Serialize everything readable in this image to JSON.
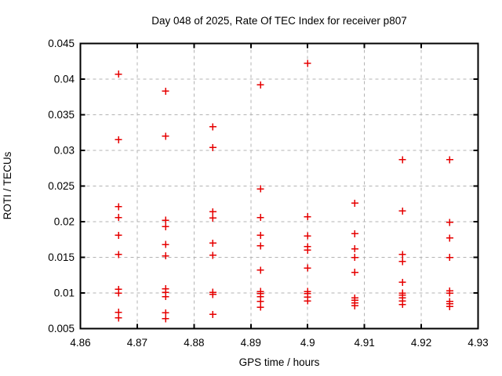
{
  "chart_data": {
    "type": "scatter",
    "title": "Day 048 of 2025, Rate Of TEC Index for receiver p807",
    "xlabel": "GPS time / hours",
    "ylabel": "ROTI / TECUs",
    "xlim": [
      4.86,
      4.93
    ],
    "ylim": [
      0.005,
      0.045
    ],
    "grid": true,
    "legend": "none",
    "marker": "plus",
    "marker_color": "#e60000",
    "grid_color": "#b3b3b3",
    "border_color": "#000000",
    "xticks": {
      "values": [
        4.86,
        4.87,
        4.88,
        4.89,
        4.9,
        4.91,
        4.92,
        4.93
      ],
      "labels": [
        "4.86",
        "4.87",
        "4.88",
        "4.89",
        "4.9",
        "4.91",
        "4.92",
        "4.93"
      ]
    },
    "yticks": {
      "values": [
        0.005,
        0.01,
        0.015,
        0.02,
        0.025,
        0.03,
        0.035,
        0.04,
        0.045
      ],
      "labels": [
        "0.005",
        "0.01",
        "0.015",
        "0.02",
        "0.025",
        "0.03",
        "0.035",
        "0.04",
        "0.045"
      ]
    },
    "series": [
      {
        "name": "ROTI",
        "points": [
          [
            4.8667,
            0.0407
          ],
          [
            4.8667,
            0.0315
          ],
          [
            4.8667,
            0.0221
          ],
          [
            4.8667,
            0.0206
          ],
          [
            4.8667,
            0.0181
          ],
          [
            4.8667,
            0.0154
          ],
          [
            4.8667,
            0.0105
          ],
          [
            4.8667,
            0.01
          ],
          [
            4.8667,
            0.0073
          ],
          [
            4.8667,
            0.0065
          ],
          [
            4.875,
            0.0383
          ],
          [
            4.875,
            0.032
          ],
          [
            4.875,
            0.0202
          ],
          [
            4.875,
            0.0193
          ],
          [
            4.875,
            0.0168
          ],
          [
            4.875,
            0.0152
          ],
          [
            4.875,
            0.0106
          ],
          [
            4.875,
            0.0101
          ],
          [
            4.875,
            0.0095
          ],
          [
            4.875,
            0.0072
          ],
          [
            4.875,
            0.0064
          ],
          [
            4.8833,
            0.0333
          ],
          [
            4.8833,
            0.0304
          ],
          [
            4.8833,
            0.0214
          ],
          [
            4.8833,
            0.0205
          ],
          [
            4.8833,
            0.017
          ],
          [
            4.8833,
            0.0153
          ],
          [
            4.8833,
            0.0101
          ],
          [
            4.8833,
            0.0098
          ],
          [
            4.8833,
            0.007
          ],
          [
            4.8917,
            0.0392
          ],
          [
            4.8917,
            0.0246
          ],
          [
            4.8917,
            0.0206
          ],
          [
            4.8917,
            0.0181
          ],
          [
            4.8917,
            0.0166
          ],
          [
            4.8917,
            0.0132
          ],
          [
            4.8917,
            0.0102
          ],
          [
            4.8917,
            0.0099
          ],
          [
            4.8917,
            0.0095
          ],
          [
            4.8917,
            0.0088
          ],
          [
            4.8917,
            0.008
          ],
          [
            4.9,
            0.0422
          ],
          [
            4.9,
            0.0207
          ],
          [
            4.9,
            0.018
          ],
          [
            4.9,
            0.0165
          ],
          [
            4.9,
            0.016
          ],
          [
            4.9,
            0.0135
          ],
          [
            4.9,
            0.0102
          ],
          [
            4.9,
            0.0099
          ],
          [
            4.9,
            0.0094
          ],
          [
            4.9,
            0.0089
          ],
          [
            4.9083,
            0.0226
          ],
          [
            4.9083,
            0.0183
          ],
          [
            4.9083,
            0.0162
          ],
          [
            4.9083,
            0.015
          ],
          [
            4.9083,
            0.0129
          ],
          [
            4.9083,
            0.0093
          ],
          [
            4.9083,
            0.009
          ],
          [
            4.9083,
            0.0086
          ],
          [
            4.9083,
            0.0082
          ],
          [
            4.9167,
            0.0287
          ],
          [
            4.9167,
            0.0215
          ],
          [
            4.9167,
            0.0154
          ],
          [
            4.9167,
            0.0144
          ],
          [
            4.9167,
            0.0115
          ],
          [
            4.9167,
            0.01
          ],
          [
            4.9167,
            0.0097
          ],
          [
            4.9167,
            0.0093
          ],
          [
            4.9167,
            0.0089
          ],
          [
            4.9167,
            0.0084
          ],
          [
            4.925,
            0.0287
          ],
          [
            4.925,
            0.0199
          ],
          [
            4.925,
            0.0177
          ],
          [
            4.925,
            0.015
          ],
          [
            4.925,
            0.0103
          ],
          [
            4.925,
            0.01
          ],
          [
            4.925,
            0.0088
          ],
          [
            4.925,
            0.0085
          ],
          [
            4.925,
            0.0081
          ]
        ]
      }
    ]
  }
}
